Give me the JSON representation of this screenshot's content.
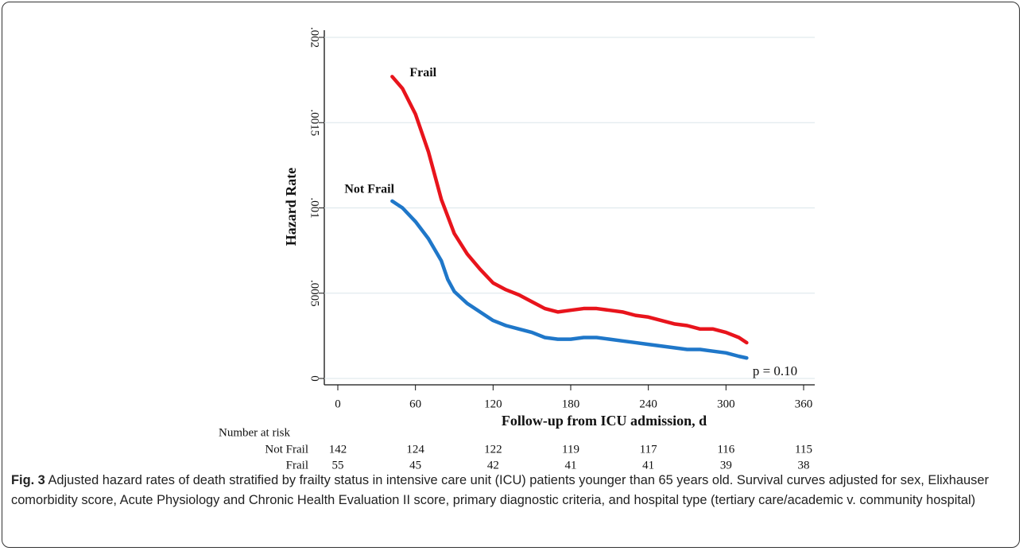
{
  "chart_data": {
    "type": "line",
    "y_label": "Hazard Rate",
    "x_label": "Follow-up from ICU admission, d",
    "x": [
      42,
      50,
      60,
      70,
      80,
      85,
      90,
      100,
      110,
      120,
      130,
      140,
      150,
      160,
      170,
      180,
      190,
      200,
      210,
      220,
      230,
      240,
      250,
      260,
      270,
      280,
      290,
      300,
      310,
      316
    ],
    "series": [
      {
        "name": "Frail",
        "color": "#e8141c",
        "values": [
          0.00177,
          0.0017,
          0.00155,
          0.00133,
          0.00105,
          0.00095,
          0.00085,
          0.00073,
          0.00064,
          0.00056,
          0.00052,
          0.00049,
          0.00045,
          0.00041,
          0.00039,
          0.0004,
          0.00041,
          0.00041,
          0.0004,
          0.00039,
          0.00037,
          0.00036,
          0.00034,
          0.00032,
          0.00031,
          0.00029,
          0.00029,
          0.00027,
          0.00024,
          0.00021
        ]
      },
      {
        "name": "Not Frail",
        "color": "#1f77c9",
        "values": [
          0.00104,
          0.001,
          0.00092,
          0.00082,
          0.00069,
          0.00058,
          0.00051,
          0.00044,
          0.00039,
          0.00034,
          0.00031,
          0.00029,
          0.00027,
          0.00024,
          0.00023,
          0.00023,
          0.00024,
          0.00024,
          0.00023,
          0.00022,
          0.00021,
          0.0002,
          0.00019,
          0.00018,
          0.00017,
          0.00017,
          0.00016,
          0.00015,
          0.00013,
          0.00012
        ]
      }
    ],
    "xlim": [
      0,
      360
    ],
    "xticks": [
      0,
      60,
      120,
      180,
      240,
      300,
      360
    ],
    "ylim": [
      0,
      0.002
    ],
    "yticks": [
      0,
      {
        "value": 0.0005,
        "label": ".0005"
      },
      {
        "value": 0.001,
        "label": ".001"
      },
      {
        "value": 0.0015,
        "label": ".0015"
      },
      {
        "value": 0.002,
        "label": ".002"
      }
    ],
    "grid": true,
    "annotation": "p = 0.10",
    "risk_table": {
      "title": "Number at risk",
      "rows": [
        {
          "label": "Not Frail",
          "values": [
            142,
            124,
            122,
            119,
            117,
            116,
            115
          ]
        },
        {
          "label": "Frail",
          "values": [
            55,
            45,
            42,
            41,
            41,
            39,
            38
          ]
        }
      ]
    }
  },
  "caption": {
    "label": "Fig. 3",
    "text": "Adjusted hazard rates of death stratified by frailty status in intensive care unit (ICU) patients younger than 65 years old. Survival curves adjusted for sex, Elixhauser comorbidity score, Acute Physiology and Chronic Health Evaluation II score, primary diagnostic criteria, and hospital type (tertiary care/academic v. community hospital)"
  }
}
